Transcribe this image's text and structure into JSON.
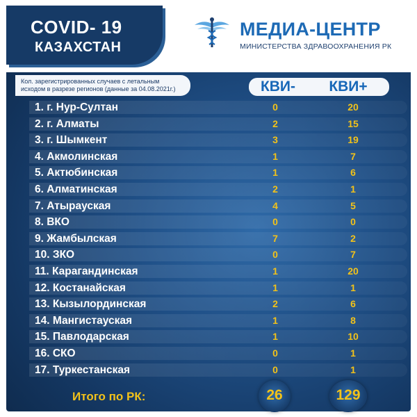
{
  "header": {
    "title_line1": "COVID- 19",
    "title_line2": "КАЗАХСТАН",
    "brand_name": "МЕДИА-ЦЕНТР",
    "brand_subtitle": "МИНИСТЕРСТВА ЗДРАВООХРАНЕНИЯ РК",
    "logo_icon": "caduceus-icon"
  },
  "note": {
    "line1": "Кол. зарегистрированных случаев с летальным",
    "line2": "исходом в разрезе регионов  (данные за 04.08.2021г.)"
  },
  "table": {
    "col1_label": "КВИ-",
    "col2_label": "КВИ+",
    "rows": [
      {
        "name": "1. г. Нур-Султан",
        "kvi_minus": "0",
        "kvi_plus": "20"
      },
      {
        "name": "2. г. Алматы",
        "kvi_minus": "2",
        "kvi_plus": "15"
      },
      {
        "name": "3. г. Шымкент",
        "kvi_minus": "3",
        "kvi_plus": "19"
      },
      {
        "name": "4. Акмолинская",
        "kvi_minus": "1",
        "kvi_plus": "7"
      },
      {
        "name": "5. Актюбинская",
        "kvi_minus": "1",
        "kvi_plus": "6"
      },
      {
        "name": "6. Алматинская",
        "kvi_minus": "2",
        "kvi_plus": "1"
      },
      {
        "name": "7. Атырауская",
        "kvi_minus": "4",
        "kvi_plus": "5"
      },
      {
        "name": "8. ВКО",
        "kvi_minus": "0",
        "kvi_plus": "0"
      },
      {
        "name": "9. Жамбылская",
        "kvi_minus": "7",
        "kvi_plus": "2"
      },
      {
        "name": "10. ЗКО",
        "kvi_minus": "0",
        "kvi_plus": "7"
      },
      {
        "name": "11. Карагандинская",
        "kvi_minus": "1",
        "kvi_plus": "20"
      },
      {
        "name": "12. Костанайская",
        "kvi_minus": "1",
        "kvi_plus": "1"
      },
      {
        "name": "13. Кызылординская",
        "kvi_minus": "2",
        "kvi_plus": "6"
      },
      {
        "name": "14. Мангистауская",
        "kvi_minus": "1",
        "kvi_plus": "8"
      },
      {
        "name": "15. Павлодарская",
        "kvi_minus": "1",
        "kvi_plus": "10"
      },
      {
        "name": "16. СКО",
        "kvi_minus": "0",
        "kvi_plus": "1"
      },
      {
        "name": "17. Туркестанская",
        "kvi_minus": "0",
        "kvi_plus": "1"
      }
    ]
  },
  "totals": {
    "label": "Итого по РК:",
    "kvi_minus": "26",
    "kvi_plus": "129"
  },
  "colors": {
    "accent_yellow": "#f2c21a",
    "brand_blue": "#1d6ab5",
    "panel_dark": "#143762"
  }
}
